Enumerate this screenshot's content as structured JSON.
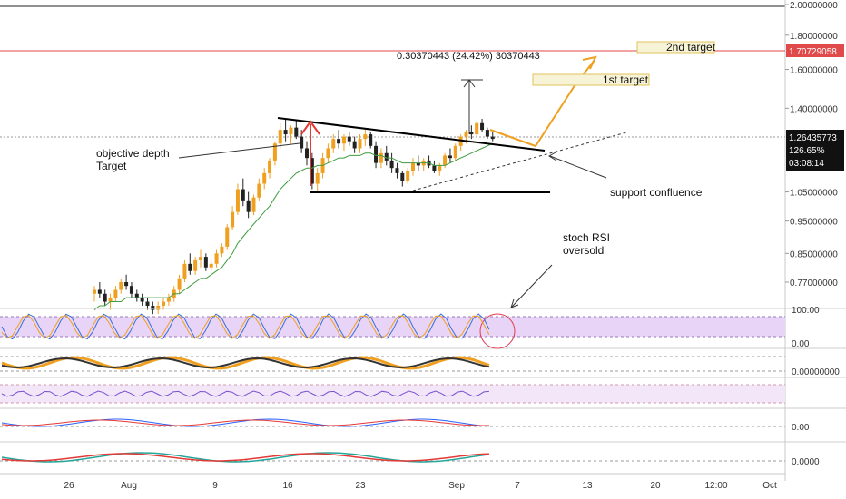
{
  "chart_data": {
    "type": "candlestick",
    "price_axis": {
      "ticks": [
        "2.00000000",
        "1.80000000",
        "1.60000000",
        "1.40000000",
        "1.05000000",
        "0.95000000",
        "0.85000000",
        "0.77000000"
      ],
      "tick_values": [
        2.0,
        1.8,
        1.6,
        1.4,
        1.05,
        0.95,
        0.85,
        0.77
      ],
      "scale": "log"
    },
    "time_axis": {
      "labels": [
        "26",
        "Aug",
        "9",
        "16",
        "23",
        "Sep",
        "7",
        "13",
        "20",
        "12:00",
        "Oct"
      ]
    },
    "current_price": {
      "value": "1.26435773",
      "change": "126.65%",
      "countdown": "03:08:14"
    },
    "target_line": {
      "value": "1.70729058"
    },
    "measure_label": "0.30370443 (24.42%) 30370443",
    "annotations": {
      "objective_line1": "objective depth",
      "objective_line2": "Target",
      "first_target": "1st target",
      "second_target": "2nd target",
      "support": "support confluence",
      "stoch_line1": "stoch RSI",
      "stoch_line2": "oversold"
    },
    "candles": [
      [
        0.74,
        0.76,
        0.72,
        0.75
      ],
      [
        0.75,
        0.77,
        0.73,
        0.74
      ],
      [
        0.74,
        0.75,
        0.71,
        0.72
      ],
      [
        0.72,
        0.74,
        0.7,
        0.73
      ],
      [
        0.73,
        0.76,
        0.72,
        0.75
      ],
      [
        0.75,
        0.78,
        0.74,
        0.77
      ],
      [
        0.77,
        0.79,
        0.75,
        0.76
      ],
      [
        0.76,
        0.77,
        0.73,
        0.74
      ],
      [
        0.74,
        0.75,
        0.72,
        0.73
      ],
      [
        0.73,
        0.74,
        0.71,
        0.72
      ],
      [
        0.72,
        0.73,
        0.7,
        0.71
      ],
      [
        0.71,
        0.72,
        0.69,
        0.7
      ],
      [
        0.7,
        0.72,
        0.69,
        0.71
      ],
      [
        0.71,
        0.73,
        0.7,
        0.72
      ],
      [
        0.72,
        0.74,
        0.71,
        0.73
      ],
      [
        0.73,
        0.76,
        0.72,
        0.75
      ],
      [
        0.75,
        0.79,
        0.74,
        0.78
      ],
      [
        0.78,
        0.83,
        0.77,
        0.82
      ],
      [
        0.82,
        0.85,
        0.79,
        0.8
      ],
      [
        0.8,
        0.84,
        0.79,
        0.83
      ],
      [
        0.83,
        0.86,
        0.81,
        0.84
      ],
      [
        0.84,
        0.85,
        0.8,
        0.81
      ],
      [
        0.81,
        0.83,
        0.8,
        0.82
      ],
      [
        0.82,
        0.86,
        0.81,
        0.85
      ],
      [
        0.85,
        0.88,
        0.84,
        0.87
      ],
      [
        0.87,
        0.94,
        0.86,
        0.93
      ],
      [
        0.93,
        1.0,
        0.92,
        0.98
      ],
      [
        0.98,
        1.08,
        0.97,
        1.06
      ],
      [
        1.06,
        1.1,
        1.0,
        1.02
      ],
      [
        1.02,
        1.05,
        0.96,
        0.98
      ],
      [
        0.98,
        1.04,
        0.97,
        1.03
      ],
      [
        1.03,
        1.1,
        1.02,
        1.08
      ],
      [
        1.08,
        1.14,
        1.06,
        1.12
      ],
      [
        1.12,
        1.18,
        1.1,
        1.17
      ],
      [
        1.17,
        1.25,
        1.15,
        1.24
      ],
      [
        1.24,
        1.33,
        1.22,
        1.3
      ],
      [
        1.3,
        1.35,
        1.25,
        1.28
      ],
      [
        1.28,
        1.32,
        1.24,
        1.31
      ],
      [
        1.31,
        1.34,
        1.26,
        1.27
      ],
      [
        1.27,
        1.3,
        1.2,
        1.22
      ],
      [
        1.22,
        1.25,
        1.15,
        1.18
      ],
      [
        1.18,
        1.2,
        1.06,
        1.08
      ],
      [
        1.08,
        1.14,
        1.05,
        1.12
      ],
      [
        1.12,
        1.2,
        1.1,
        1.18
      ],
      [
        1.18,
        1.24,
        1.16,
        1.22
      ],
      [
        1.22,
        1.28,
        1.2,
        1.26
      ],
      [
        1.26,
        1.3,
        1.22,
        1.24
      ],
      [
        1.24,
        1.28,
        1.21,
        1.27
      ],
      [
        1.27,
        1.29,
        1.23,
        1.25
      ],
      [
        1.25,
        1.27,
        1.2,
        1.22
      ],
      [
        1.22,
        1.28,
        1.2,
        1.26
      ],
      [
        1.26,
        1.3,
        1.23,
        1.28
      ],
      [
        1.28,
        1.29,
        1.22,
        1.23
      ],
      [
        1.23,
        1.25,
        1.14,
        1.16
      ],
      [
        1.16,
        1.22,
        1.14,
        1.2
      ],
      [
        1.2,
        1.23,
        1.15,
        1.17
      ],
      [
        1.17,
        1.2,
        1.12,
        1.14
      ],
      [
        1.14,
        1.16,
        1.1,
        1.12
      ],
      [
        1.12,
        1.13,
        1.07,
        1.09
      ],
      [
        1.09,
        1.14,
        1.08,
        1.13
      ],
      [
        1.13,
        1.18,
        1.11,
        1.16
      ],
      [
        1.16,
        1.19,
        1.13,
        1.15
      ],
      [
        1.15,
        1.18,
        1.13,
        1.17
      ],
      [
        1.17,
        1.19,
        1.14,
        1.15
      ],
      [
        1.15,
        1.17,
        1.12,
        1.13
      ],
      [
        1.13,
        1.16,
        1.11,
        1.15
      ],
      [
        1.15,
        1.2,
        1.14,
        1.19
      ],
      [
        1.19,
        1.22,
        1.16,
        1.18
      ],
      [
        1.18,
        1.24,
        1.17,
        1.23
      ],
      [
        1.23,
        1.28,
        1.21,
        1.27
      ],
      [
        1.27,
        1.3,
        1.24,
        1.29
      ],
      [
        1.29,
        1.32,
        1.26,
        1.28
      ],
      [
        1.28,
        1.34,
        1.27,
        1.33
      ],
      [
        1.33,
        1.35,
        1.29,
        1.3
      ],
      [
        1.3,
        1.31,
        1.26,
        1.27
      ],
      [
        1.27,
        1.29,
        1.25,
        1.26
      ]
    ],
    "sma": [
      0.7,
      0.71,
      0.71,
      0.72,
      0.72,
      0.72,
      0.73,
      0.73,
      0.73,
      0.73,
      0.73,
      0.73,
      0.73,
      0.73,
      0.73,
      0.74,
      0.74,
      0.75,
      0.76,
      0.77,
      0.78,
      0.78,
      0.79,
      0.8,
      0.81,
      0.83,
      0.85,
      0.88,
      0.9,
      0.92,
      0.94,
      0.96,
      0.98,
      1.0,
      1.03,
      1.06,
      1.08,
      1.1,
      1.12,
      1.13,
      1.14,
      1.14,
      1.15,
      1.15,
      1.16,
      1.17,
      1.18,
      1.18,
      1.19,
      1.19,
      1.19,
      1.2,
      1.2,
      1.19,
      1.19,
      1.18,
      1.18,
      1.17,
      1.16,
      1.16,
      1.16,
      1.16,
      1.16,
      1.16,
      1.15,
      1.15,
      1.15,
      1.16,
      1.17,
      1.18,
      1.19,
      1.2,
      1.21,
      1.22,
      1.23,
      1.24
    ],
    "indicators": {
      "stoch_ticks": [
        "100.00",
        "0.00"
      ],
      "osc2_ticks": [
        "0.00000000"
      ],
      "macd_ticks": [
        "0.00"
      ],
      "last_ticks": [
        "0.0000"
      ]
    }
  }
}
